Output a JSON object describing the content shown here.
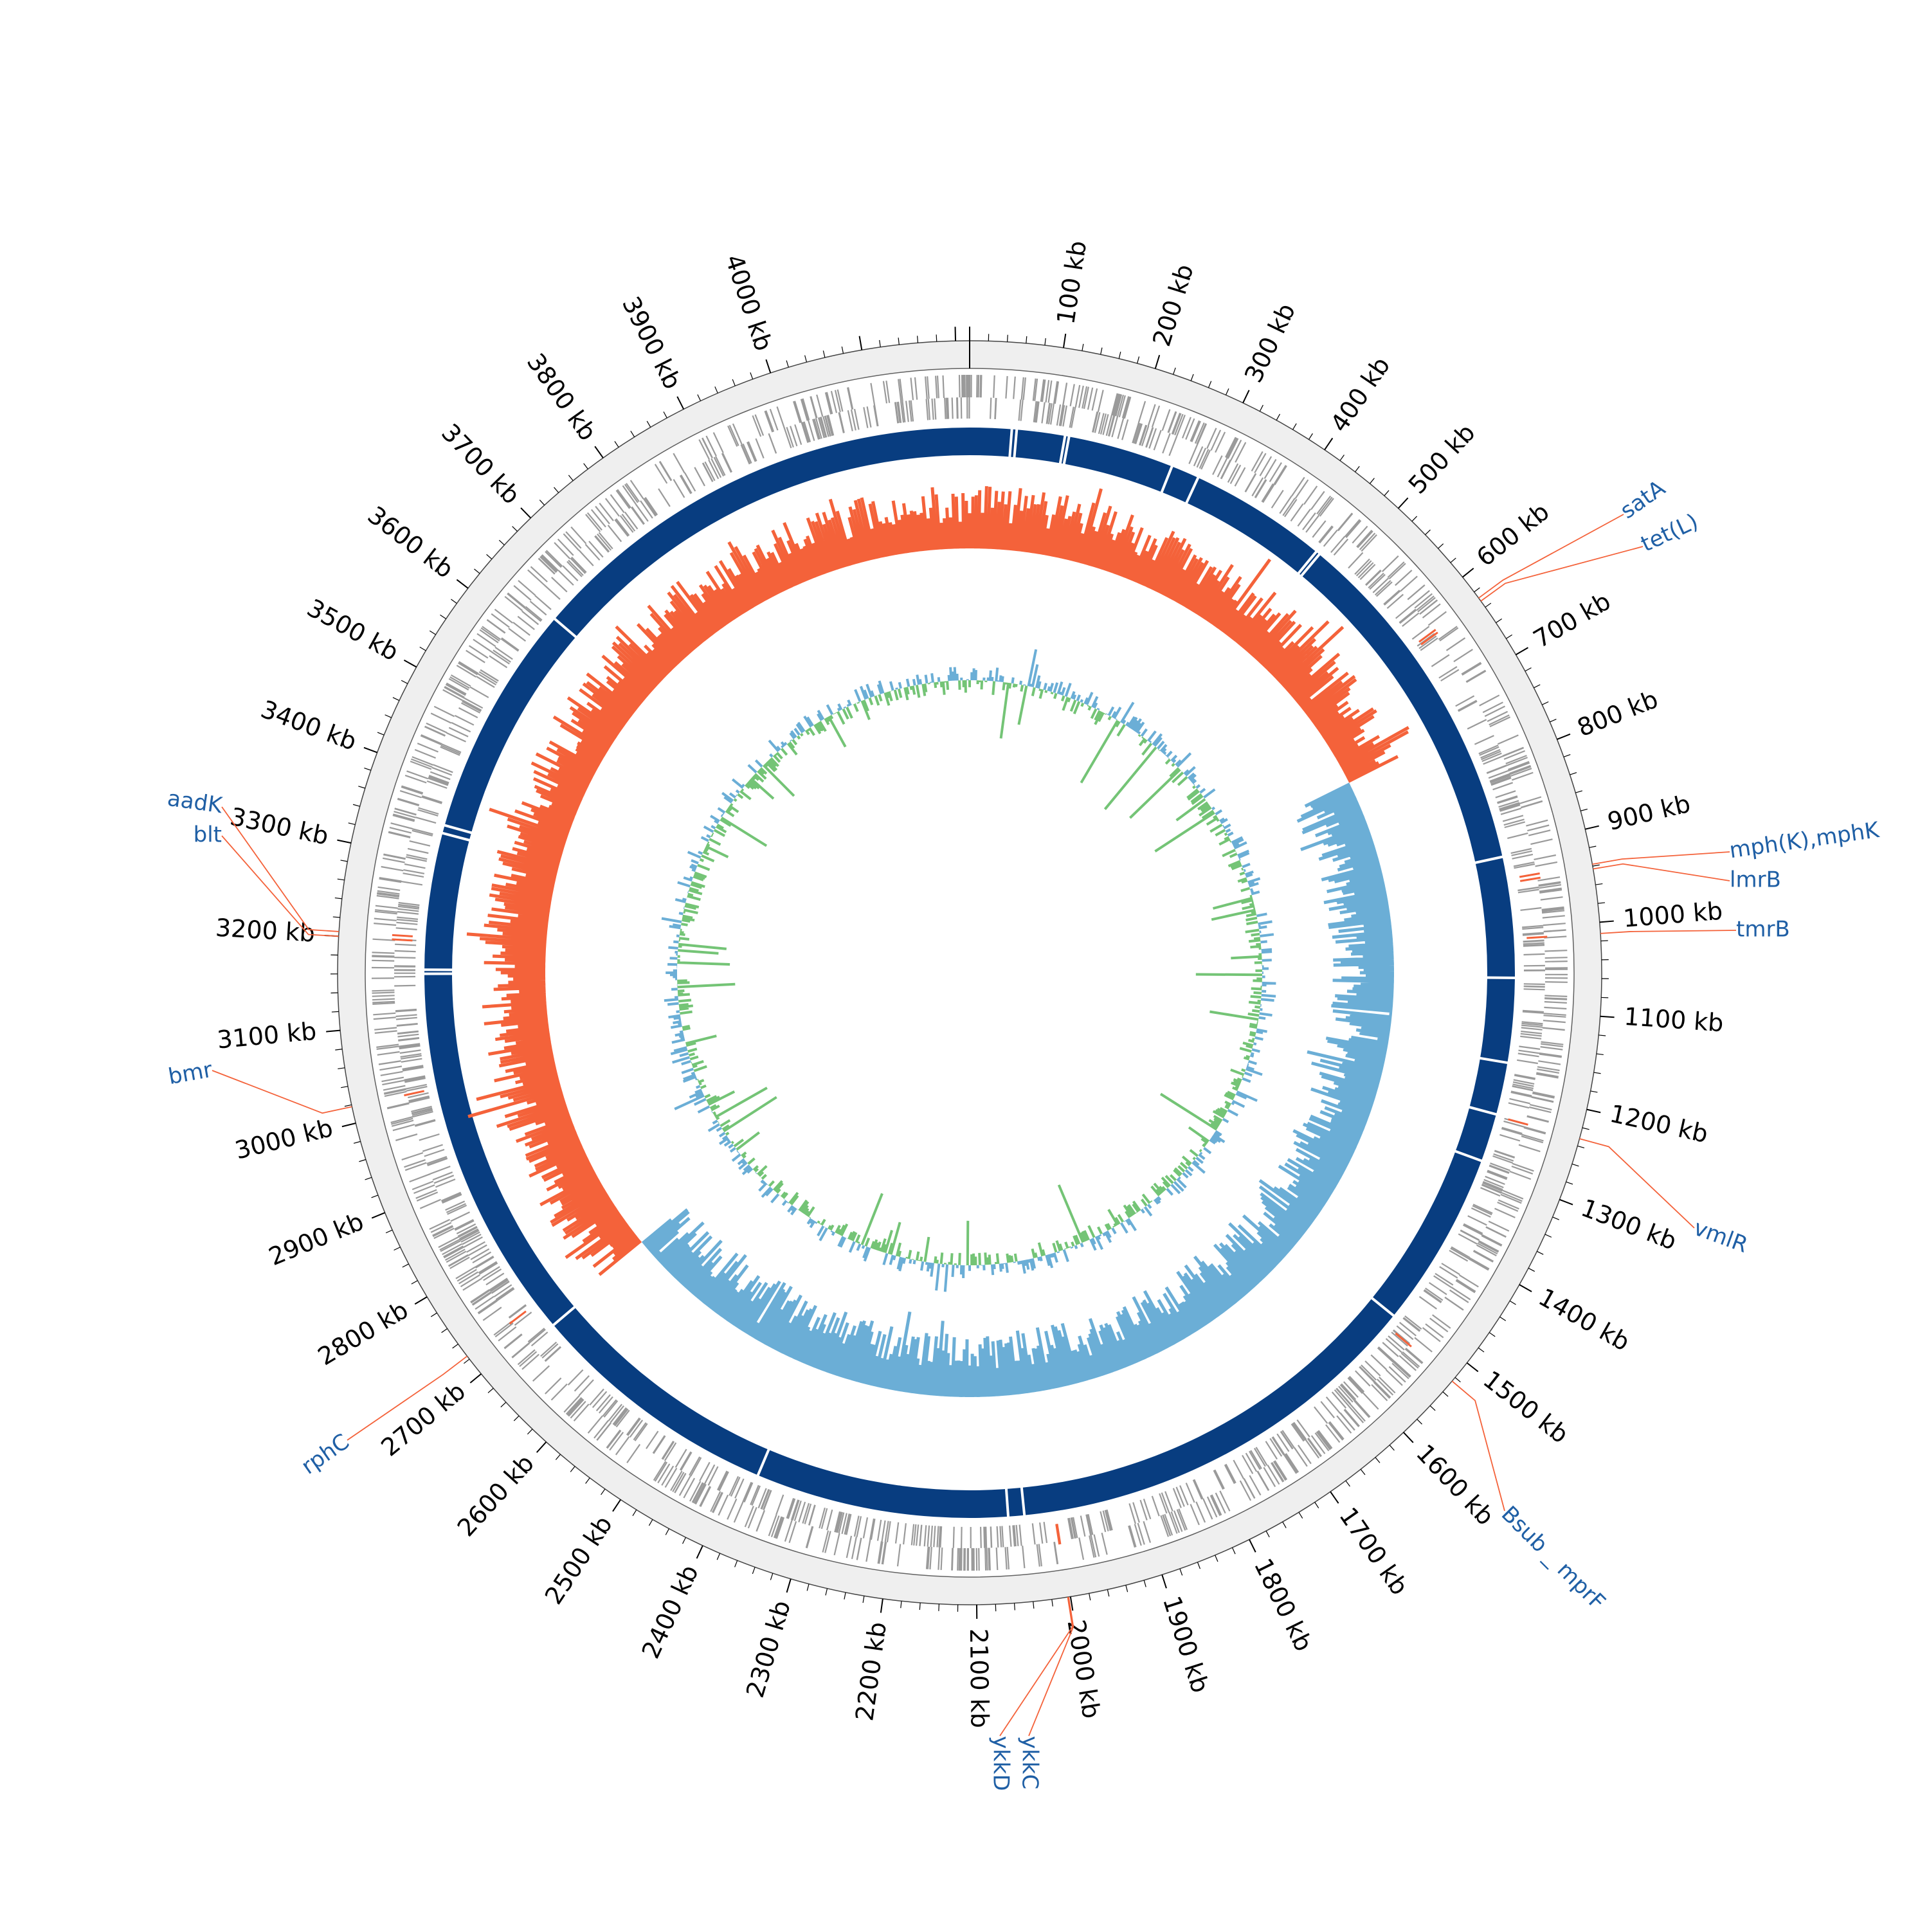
{
  "diagram": {
    "genome_length_kb": 4215,
    "tick_label_step_kb": 100,
    "tick_unit_suffix": " kb",
    "tick_labels": [
      "100 kb",
      "200 kb",
      "300 kb",
      "400 kb",
      "500 kb",
      "600 kb",
      "700 kb",
      "800 kb",
      "900 kb",
      "1000 kb",
      "1100 kb",
      "1200 kb",
      "1300 kb",
      "1400 kb",
      "1500 kb",
      "1600 kb",
      "1700 kb",
      "1800 kb",
      "1900 kb",
      "2000 kb",
      "2100 kb",
      "2200 kb",
      "2300 kb",
      "2400 kb",
      "2500 kb",
      "2600 kb",
      "2700 kb",
      "2800 kb",
      "2900 kb",
      "3000 kb",
      "3100 kb",
      "3200 kb",
      "3300 kb",
      "3400 kb",
      "3500 kb",
      "3600 kb",
      "3700 kb",
      "3800 kb",
      "3900 kb",
      "4000 kb"
    ],
    "gene_labels": [
      {
        "name": "satA",
        "position_kb": 628
      },
      {
        "name": "tet(L)",
        "position_kb": 632
      },
      {
        "name": "mph(K),mphK",
        "position_kb": 938
      },
      {
        "name": "lmrB",
        "position_kb": 943
      },
      {
        "name": "tmrB",
        "position_kb": 1012
      },
      {
        "name": "vmlR",
        "position_kb": 1232
      },
      {
        "name": "Bsub _ mprF",
        "position_kb": 1525
      },
      {
        "name": "ykkC",
        "position_kb": 2002
      },
      {
        "name": "ykkD",
        "position_kb": 2003
      },
      {
        "name": "rphC",
        "position_kb": 2724
      },
      {
        "name": "bmr",
        "position_kb": 3018
      },
      {
        "name": "aadK",
        "position_kb": 3205
      },
      {
        "name": "blt",
        "position_kb": 3200
      }
    ],
    "contig_gaps_kb": [
      52,
      58,
      118,
      123,
      255,
      290,
      462,
      467,
      910,
      1060,
      1165,
      1230,
      1290,
      1510,
      2040,
      2060,
      2375,
      2690,
      3160,
      3165,
      3335,
      3345,
      3635
    ],
    "gc_content_switch_kb": [
      740,
      2700
    ],
    "colors": {
      "gc_content_high": "#f4623a",
      "gc_content_low": "#6baed6",
      "gc_skew_positive": "#6baed6",
      "gc_skew_negative": "#74c476",
      "contig_ring": "#083d80",
      "cds_feature": "#9a9a9a",
      "resistance_feature": "#f4623a",
      "gene_label_text": "#1f5fa5",
      "gene_label_line": "#f4623a",
      "outer_ring_fill": "#efefef"
    }
  }
}
